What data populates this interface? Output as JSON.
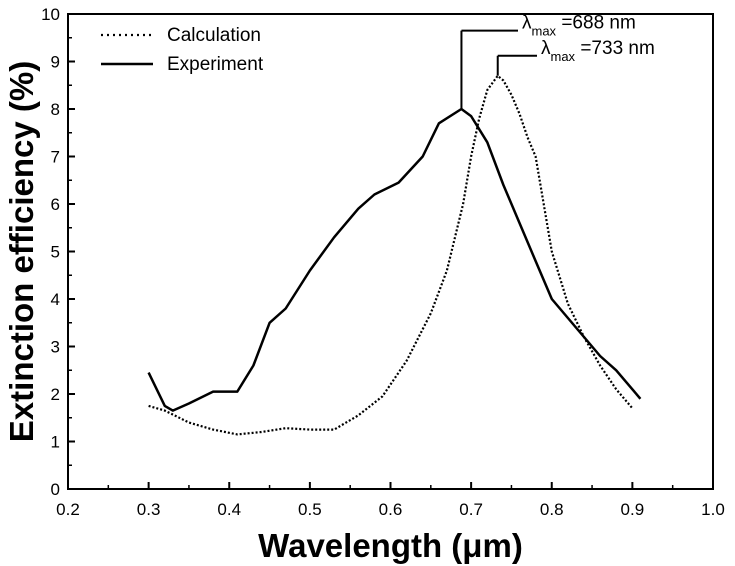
{
  "chart_data": {
    "type": "line",
    "title": "",
    "xlabel": "Wavelength (μm)",
    "ylabel": "Extinction efficiency (%)",
    "xlim": [
      0.2,
      1.0
    ],
    "ylim": [
      0,
      10
    ],
    "xticks": [
      "0.2",
      "0.3",
      "0.4",
      "0.5",
      "0.6",
      "0.7",
      "0.8",
      "0.9",
      "1.0"
    ],
    "yticks": [
      "0",
      "1",
      "2",
      "3",
      "4",
      "5",
      "6",
      "7",
      "8",
      "9",
      "10"
    ],
    "grid": false,
    "legend_position": "top-left",
    "series": [
      {
        "name": "Calculation",
        "style": "dotted",
        "color": "#000000",
        "x": [
          0.3,
          0.32,
          0.35,
          0.38,
          0.41,
          0.44,
          0.47,
          0.5,
          0.53,
          0.56,
          0.59,
          0.62,
          0.65,
          0.67,
          0.69,
          0.7,
          0.71,
          0.72,
          0.733,
          0.74,
          0.75,
          0.76,
          0.77,
          0.78,
          0.79,
          0.8,
          0.82,
          0.84,
          0.86,
          0.88,
          0.9
        ],
        "y": [
          1.75,
          1.65,
          1.4,
          1.25,
          1.15,
          1.2,
          1.28,
          1.25,
          1.25,
          1.55,
          1.95,
          2.7,
          3.7,
          4.6,
          6.0,
          7.0,
          7.8,
          8.4,
          8.7,
          8.6,
          8.3,
          7.9,
          7.4,
          7.0,
          6.0,
          5.0,
          3.9,
          3.2,
          2.6,
          2.1,
          1.7
        ]
      },
      {
        "name": "Experiment",
        "style": "solid",
        "color": "#000000",
        "x": [
          0.3,
          0.32,
          0.33,
          0.35,
          0.38,
          0.41,
          0.43,
          0.45,
          0.47,
          0.5,
          0.53,
          0.56,
          0.58,
          0.61,
          0.64,
          0.66,
          0.688,
          0.7,
          0.72,
          0.74,
          0.76,
          0.78,
          0.8,
          0.82,
          0.84,
          0.86,
          0.88,
          0.91
        ],
        "y": [
          2.45,
          1.75,
          1.65,
          1.8,
          2.05,
          2.05,
          2.6,
          3.5,
          3.8,
          4.6,
          5.3,
          5.9,
          6.2,
          6.45,
          7.0,
          7.7,
          8.0,
          7.85,
          7.3,
          6.4,
          5.6,
          4.8,
          4.0,
          3.6,
          3.2,
          2.8,
          2.5,
          1.9
        ]
      }
    ],
    "annotations": [
      {
        "sym": "λ",
        "sub": "max",
        "text": "=688 nm",
        "x": 0.688,
        "y": 8.0,
        "label_y": 9.65
      },
      {
        "sym": "λ",
        "sub": "max",
        "text": "=733 nm",
        "x": 0.733,
        "y": 8.7,
        "label_y": 9.12
      }
    ]
  }
}
